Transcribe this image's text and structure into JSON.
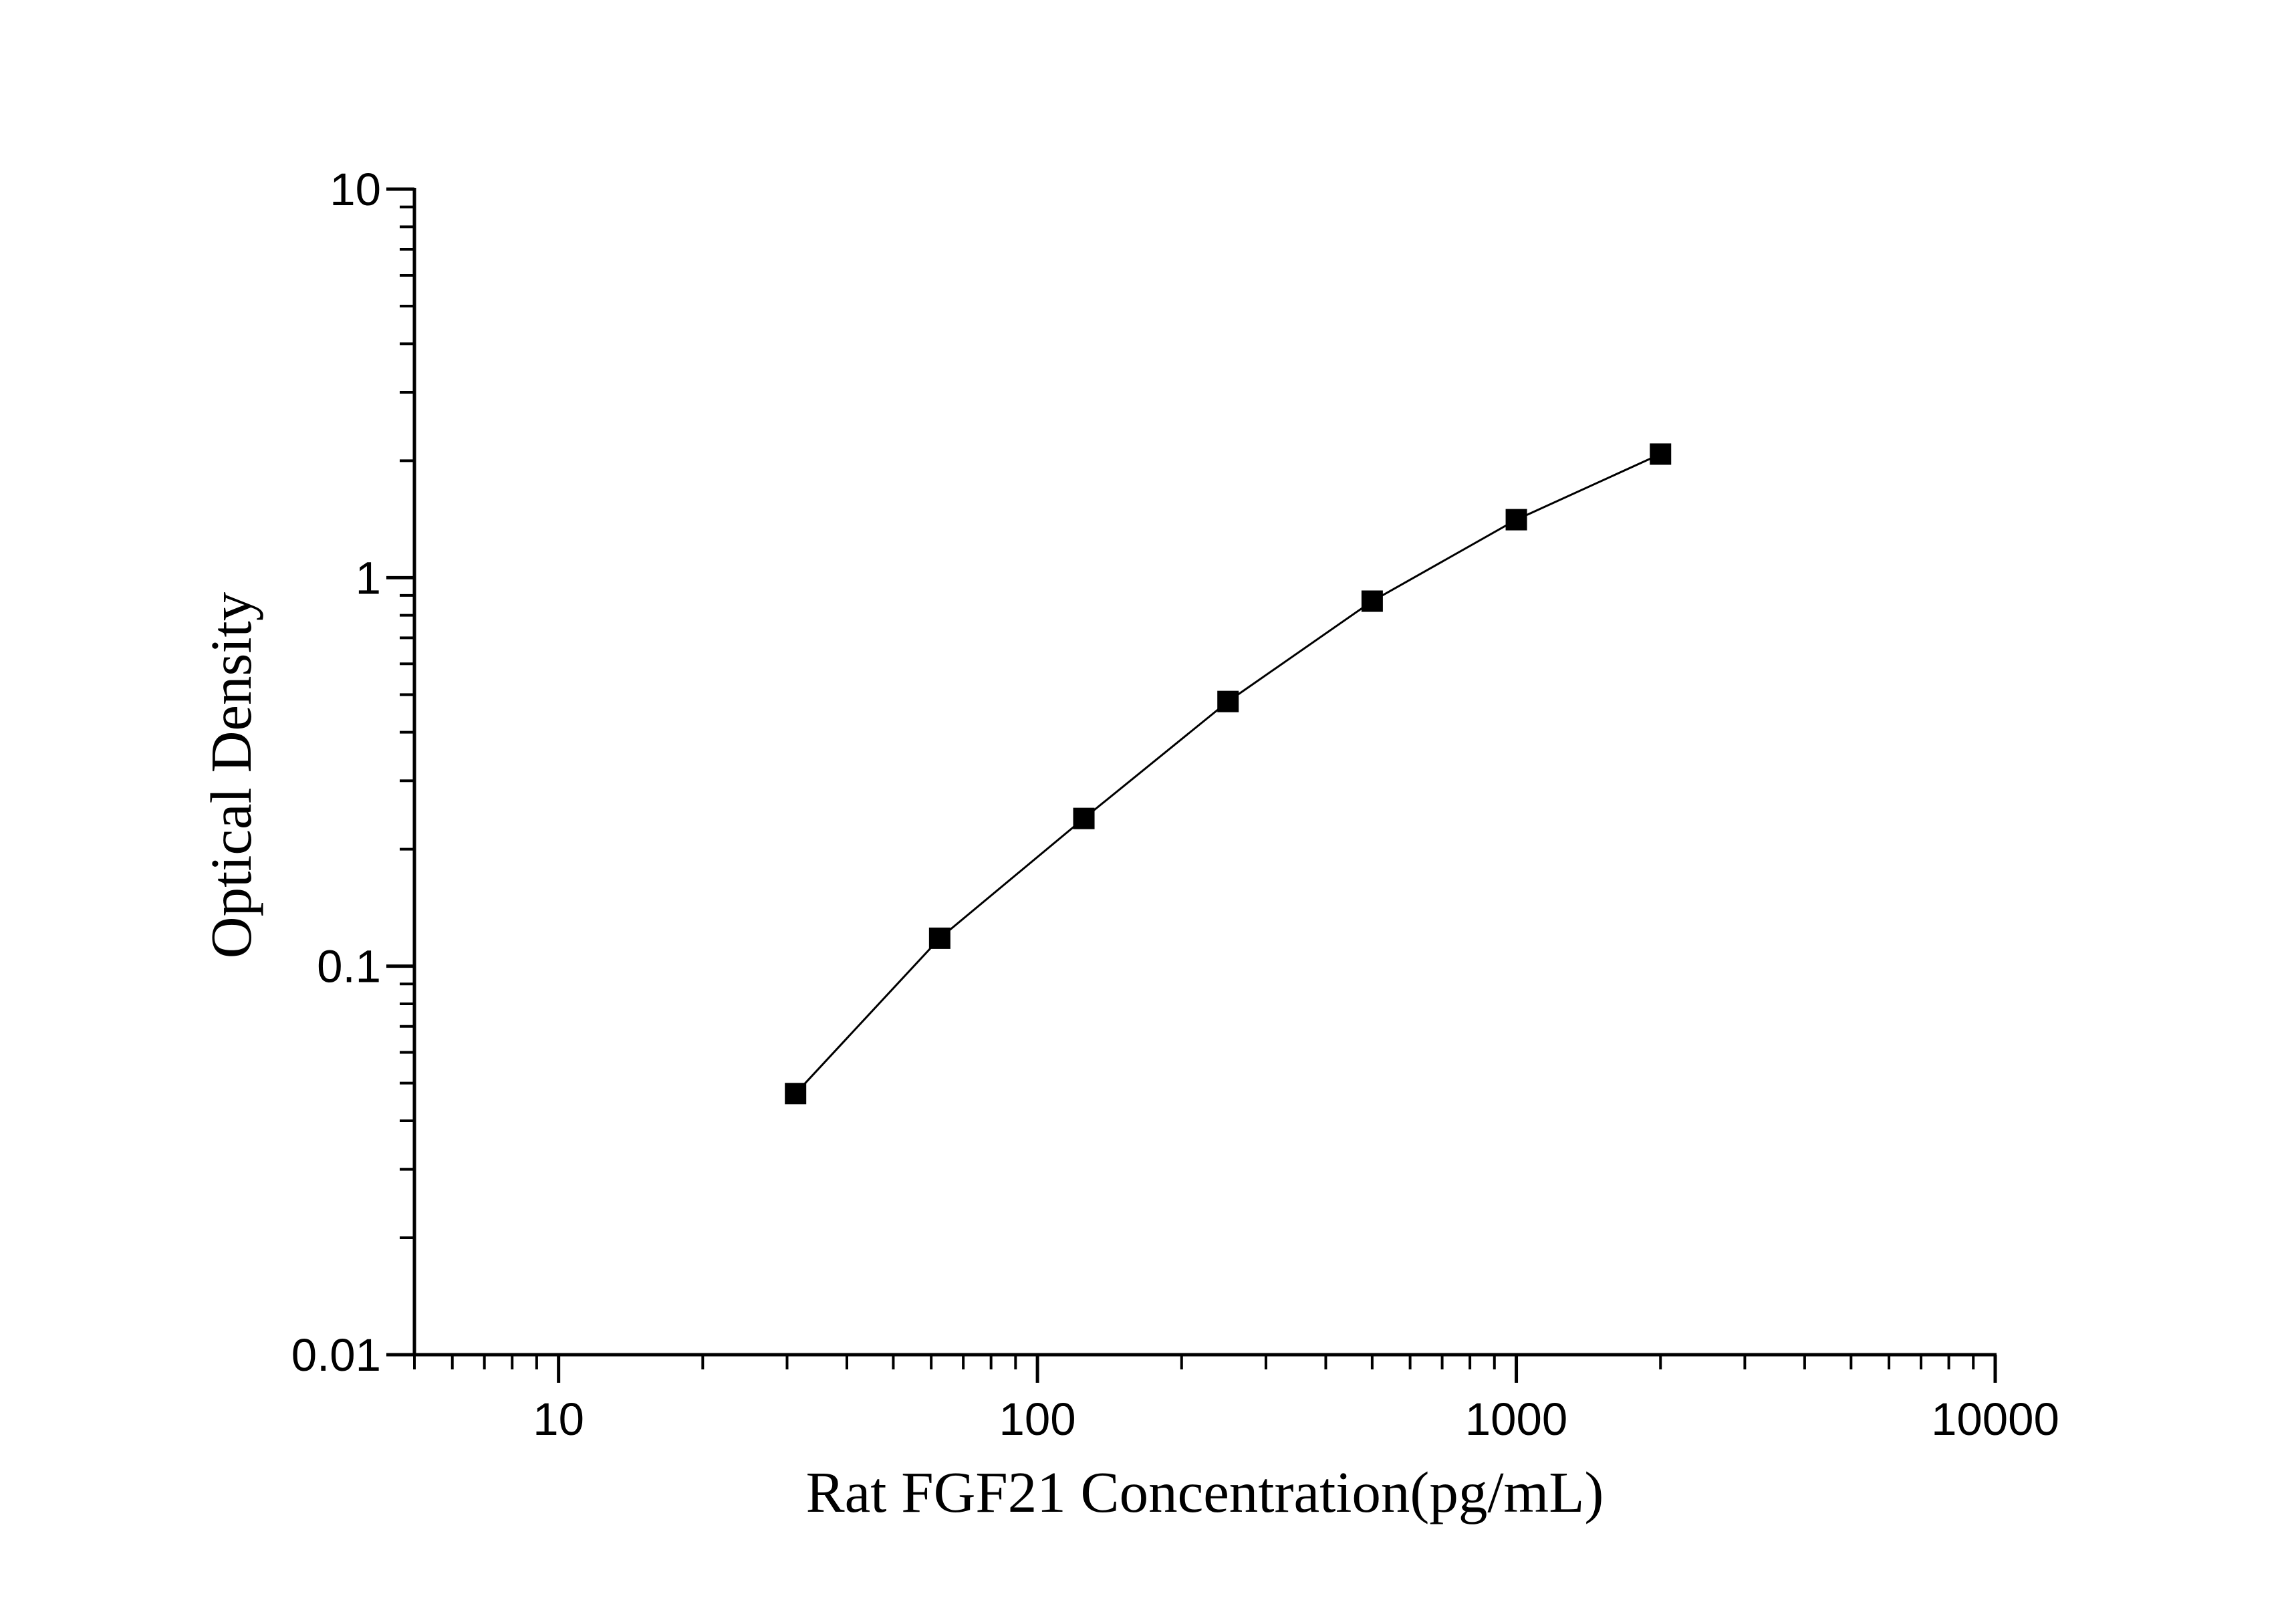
{
  "chart_data": {
    "type": "line",
    "xlabel": "Rat FGF21 Concentration(pg/mL)",
    "ylabel": "Optical Density",
    "xscale": "log",
    "yscale": "log",
    "xlim": [
      5,
      10000
    ],
    "ylim": [
      0.01,
      10
    ],
    "x_ticks": [
      {
        "value": 10,
        "label": "10"
      },
      {
        "value": 100,
        "label": "100"
      },
      {
        "value": 1000,
        "label": "1000"
      },
      {
        "value": 10000,
        "label": "10000"
      }
    ],
    "y_ticks": [
      {
        "value": 0.01,
        "label": "0.01"
      },
      {
        "value": 0.1,
        "label": "0.1"
      },
      {
        "value": 1,
        "label": "1"
      },
      {
        "value": 10,
        "label": "10"
      }
    ],
    "grid": false,
    "marker": "square",
    "line_color": "#000000",
    "marker_color": "#000000",
    "series": [
      {
        "x": [
          31.25,
          62.5,
          125,
          250,
          500,
          1000,
          2000
        ],
        "y": [
          0.047,
          0.118,
          0.24,
          0.48,
          0.87,
          1.41,
          2.08
        ]
      }
    ]
  }
}
